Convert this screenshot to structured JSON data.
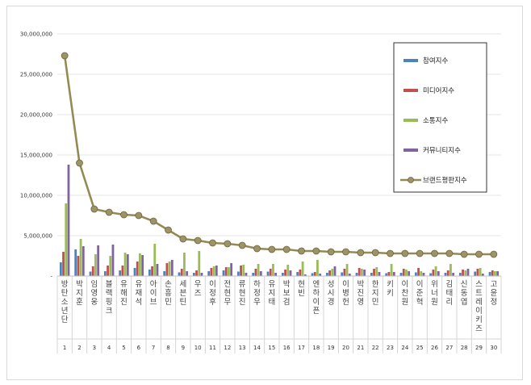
{
  "chart_data": {
    "type": "bar",
    "y_ticks": [
      "-",
      "5,000,000",
      "10,000,000",
      "15,000,000",
      "20,000,000",
      "25,000,000",
      "30,000,000"
    ],
    "ylim": [
      0,
      30000000
    ],
    "categories": [
      {
        "rank": "1",
        "name": "방탄소년단"
      },
      {
        "rank": "2",
        "name": "박지훈"
      },
      {
        "rank": "3",
        "name": "임영웅"
      },
      {
        "rank": "4",
        "name": "블랙핑크"
      },
      {
        "rank": "5",
        "name": "유해진"
      },
      {
        "rank": "6",
        "name": "유재석"
      },
      {
        "rank": "7",
        "name": "아이브"
      },
      {
        "rank": "8",
        "name": "손흥민"
      },
      {
        "rank": "9",
        "name": "세븐틴"
      },
      {
        "rank": "10",
        "name": "우즈"
      },
      {
        "rank": "11",
        "name": "이정후"
      },
      {
        "rank": "12",
        "name": "전현무"
      },
      {
        "rank": "13",
        "name": "류현진"
      },
      {
        "rank": "14",
        "name": "하정우"
      },
      {
        "rank": "15",
        "name": "유지태"
      },
      {
        "rank": "16",
        "name": "박보검"
      },
      {
        "rank": "17",
        "name": "현빈"
      },
      {
        "rank": "18",
        "name": "엔하이픈"
      },
      {
        "rank": "19",
        "name": "성시경"
      },
      {
        "rank": "20",
        "name": "이병헌"
      },
      {
        "rank": "21",
        "name": "박진영"
      },
      {
        "rank": "22",
        "name": "한지민"
      },
      {
        "rank": "23",
        "name": "키키"
      },
      {
        "rank": "24",
        "name": "이찬원"
      },
      {
        "rank": "25",
        "name": "이준혁"
      },
      {
        "rank": "26",
        "name": "위너원"
      },
      {
        "rank": "27",
        "name": "김태리"
      },
      {
        "rank": "28",
        "name": "신동엽"
      },
      {
        "rank": "29",
        "name": "스트레이키즈"
      },
      {
        "rank": "30",
        "name": "고윤정"
      }
    ],
    "series": [
      {
        "name": "참여지수",
        "type": "bar",
        "color": "#4f81bd",
        "values": [
          1700000,
          3300000,
          550000,
          600000,
          700000,
          1000000,
          800000,
          600000,
          450000,
          400000,
          600000,
          700000,
          550000,
          400000,
          550000,
          400000,
          500000,
          350000,
          400000,
          450000,
          400000,
          400000,
          350000,
          400000,
          450000,
          350000,
          400000,
          400000,
          550000,
          500000
        ]
      },
      {
        "name": "미디어지수",
        "type": "bar",
        "color": "#c0504d",
        "values": [
          3000000,
          2500000,
          1200000,
          1300000,
          1300000,
          1800000,
          1200000,
          1600000,
          900000,
          700000,
          1000000,
          1100000,
          1300000,
          900000,
          900000,
          800000,
          800000,
          500000,
          700000,
          900000,
          1000000,
          900000,
          500000,
          900000,
          1000000,
          800000,
          700000,
          800000,
          900000,
          700000
        ]
      },
      {
        "name": "소통지수",
        "type": "bar",
        "color": "#9bbb59",
        "values": [
          9000000,
          4600000,
          2700000,
          2500000,
          2900000,
          2800000,
          4000000,
          1800000,
          2900000,
          3100000,
          1200000,
          1100000,
          1400000,
          1500000,
          1500000,
          1400000,
          1800000,
          2000000,
          900000,
          1500000,
          900000,
          1100000,
          1500000,
          800000,
          600000,
          1200000,
          1500000,
          700000,
          1000000,
          600000
        ]
      },
      {
        "name": "커뮤니티지수",
        "type": "bar",
        "color": "#8064a2",
        "values": [
          13800000,
          3700000,
          3800000,
          3900000,
          2700000,
          2600000,
          1500000,
          2000000,
          600000,
          400000,
          1300000,
          1600000,
          400000,
          600000,
          400000,
          700000,
          200000,
          300000,
          1200000,
          300000,
          800000,
          500000,
          500000,
          600000,
          400000,
          600000,
          400000,
          900000,
          300000,
          600000
        ]
      },
      {
        "name": "브랜드평판지수",
        "type": "line",
        "color": "#948a54",
        "values": [
          27300000,
          14000000,
          8300000,
          7900000,
          7600000,
          7500000,
          6800000,
          5700000,
          4600000,
          4400000,
          4100000,
          4000000,
          3800000,
          3400000,
          3300000,
          3300000,
          3100000,
          3100000,
          3000000,
          3000000,
          2900000,
          2900000,
          2800000,
          2800000,
          2800000,
          2800000,
          2800000,
          2700000,
          2700000,
          2700000
        ]
      }
    ],
    "legend_position": "right",
    "grid": true
  }
}
